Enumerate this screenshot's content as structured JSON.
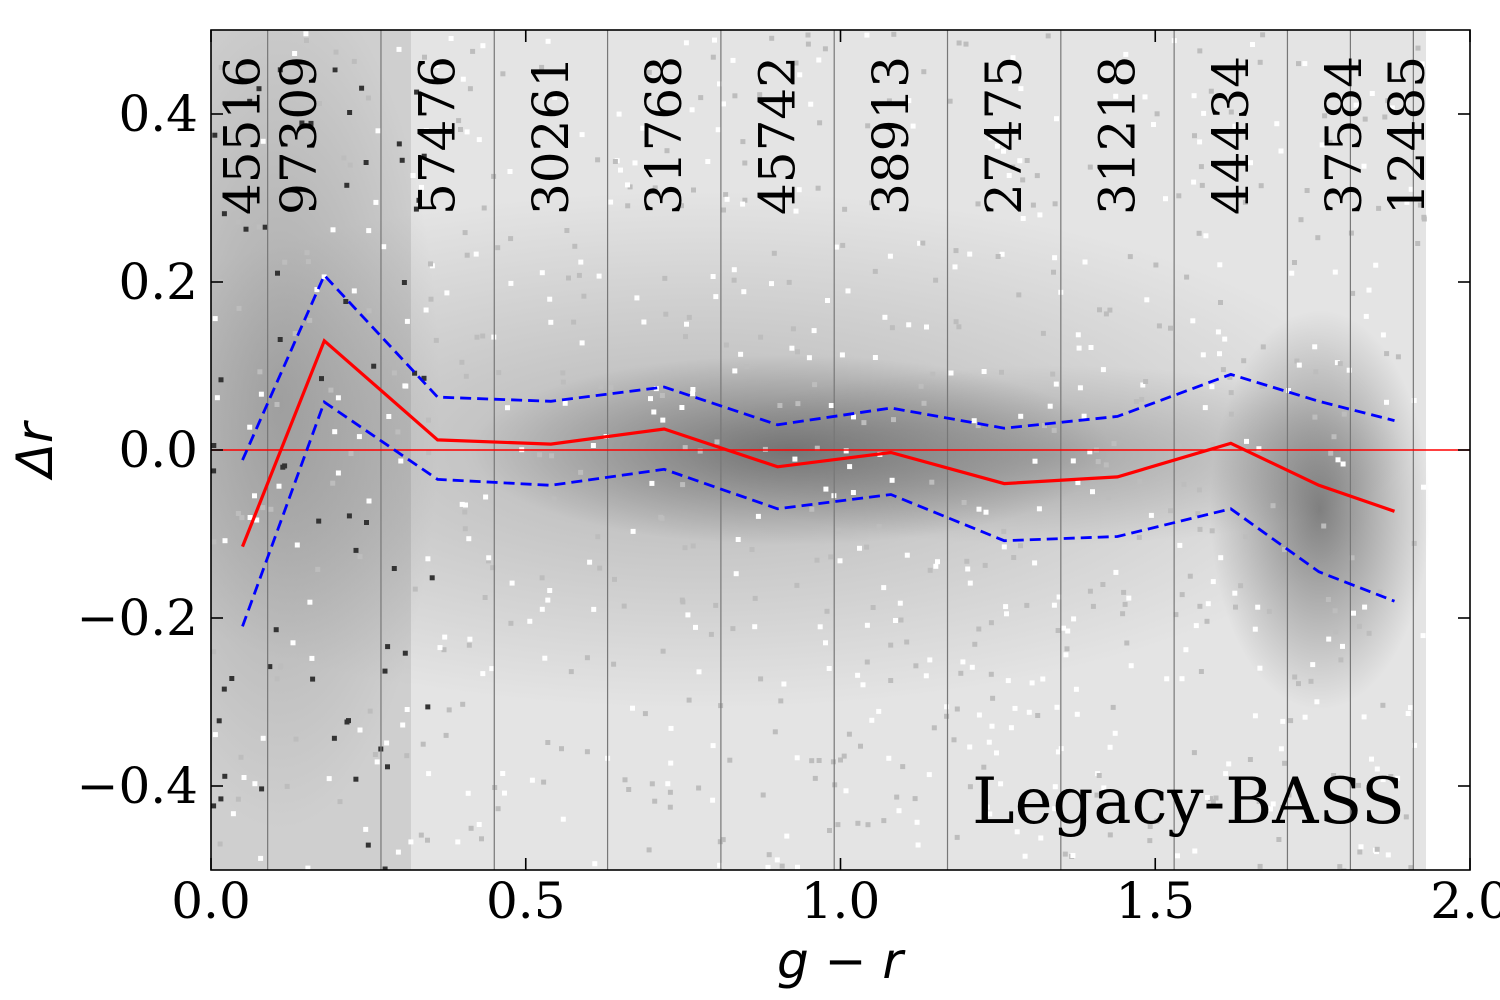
{
  "chart_data": {
    "type": "line",
    "title": "",
    "xlabel": "g − r",
    "ylabel": "Δr",
    "xlim": [
      0.0,
      2.0
    ],
    "ylim": [
      -0.5,
      0.5
    ],
    "xticks": [
      0.0,
      0.5,
      1.0,
      1.5,
      2.0
    ],
    "xtick_labels": [
      "0.0",
      "0.5",
      "1.0",
      "1.5",
      "2.0"
    ],
    "yticks": [
      -0.4,
      -0.2,
      0.0,
      0.2,
      0.4
    ],
    "ytick_labels": [
      "−0.4",
      "−0.2",
      "0.0",
      "0.2",
      "0.4"
    ],
    "grid": false,
    "annotation": "Legacy-BASS",
    "reference_line_y": 0.0,
    "bin_edges": [
      0.09,
      0.27,
      0.45,
      0.63,
      0.81,
      0.99,
      1.17,
      1.35,
      1.53,
      1.71,
      1.81,
      1.91
    ],
    "bins": [
      {
        "x": 0.05,
        "count": "45516"
      },
      {
        "x": 0.14,
        "count": "97309"
      },
      {
        "x": 0.36,
        "count": "57476"
      },
      {
        "x": 0.54,
        "count": "30261"
      },
      {
        "x": 0.72,
        "count": "31768"
      },
      {
        "x": 0.9,
        "count": "45742"
      },
      {
        "x": 1.08,
        "count": "38913"
      },
      {
        "x": 1.26,
        "count": "27475"
      },
      {
        "x": 1.44,
        "count": "31218"
      },
      {
        "x": 1.62,
        "count": "44434"
      },
      {
        "x": 1.8,
        "count": "37584"
      },
      {
        "x": 1.9,
        "count": "12485"
      }
    ],
    "x": [
      0.05,
      0.18,
      0.36,
      0.54,
      0.72,
      0.9,
      1.08,
      1.26,
      1.44,
      1.62,
      1.76,
      1.88
    ],
    "series": [
      {
        "role": "median",
        "color": "#ff0000",
        "style": "solid",
        "values": [
          -0.115,
          0.13,
          0.012,
          0.007,
          0.025,
          -0.02,
          -0.003,
          -0.04,
          -0.032,
          0.008,
          -0.042,
          -0.073
        ]
      },
      {
        "role": "upper",
        "color": "#0000ff",
        "style": "dashed",
        "values": [
          -0.012,
          0.208,
          0.063,
          0.058,
          0.075,
          0.03,
          0.05,
          0.026,
          0.04,
          0.09,
          0.058,
          0.035
        ]
      },
      {
        "role": "lower",
        "color": "#0000ff",
        "style": "dashed",
        "values": [
          -0.21,
          0.057,
          -0.035,
          -0.042,
          -0.023,
          -0.07,
          -0.053,
          -0.108,
          -0.103,
          -0.07,
          -0.145,
          -0.18
        ]
      }
    ],
    "colors": {
      "background_density": "#7a7a7a",
      "reference_line": "#ff0000"
    }
  }
}
